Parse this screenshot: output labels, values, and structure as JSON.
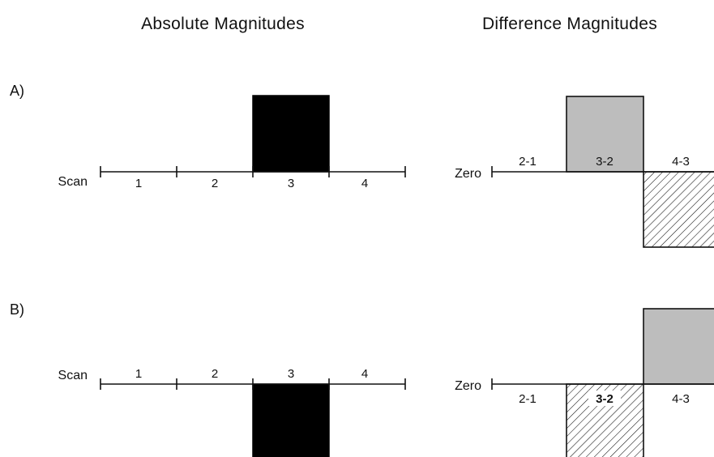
{
  "titles": {
    "absolute": "Absolute Magnitudes",
    "difference": "Difference Magnitudes"
  },
  "row_labels": {
    "a": "A)",
    "b": "B)"
  },
  "axis_labels": {
    "scan": "Scan",
    "zero": "Zero"
  },
  "scan_ticks": [
    "1",
    "2",
    "3",
    "4"
  ],
  "diff_ticks": [
    "2-1",
    "3-2",
    "4-3"
  ],
  "colors": {
    "absolute_bar": "#000000",
    "positive_difference": "#bdbdbd",
    "negative_difference_pattern": "diagonal-hatch"
  },
  "panels": {
    "a": {
      "absolute_bar_scan": "3",
      "absolute_direction": "up",
      "difference_bars": [
        {
          "interval": "3-2",
          "sign": "positive",
          "style": "gray"
        },
        {
          "interval": "4-3",
          "sign": "negative",
          "style": "hatch"
        }
      ]
    },
    "b": {
      "absolute_bar_scan": "3",
      "absolute_direction": "down",
      "difference_bars": [
        {
          "interval": "3-2",
          "sign": "negative",
          "style": "hatch"
        },
        {
          "interval": "4-3",
          "sign": "positive",
          "style": "gray"
        }
      ]
    }
  }
}
